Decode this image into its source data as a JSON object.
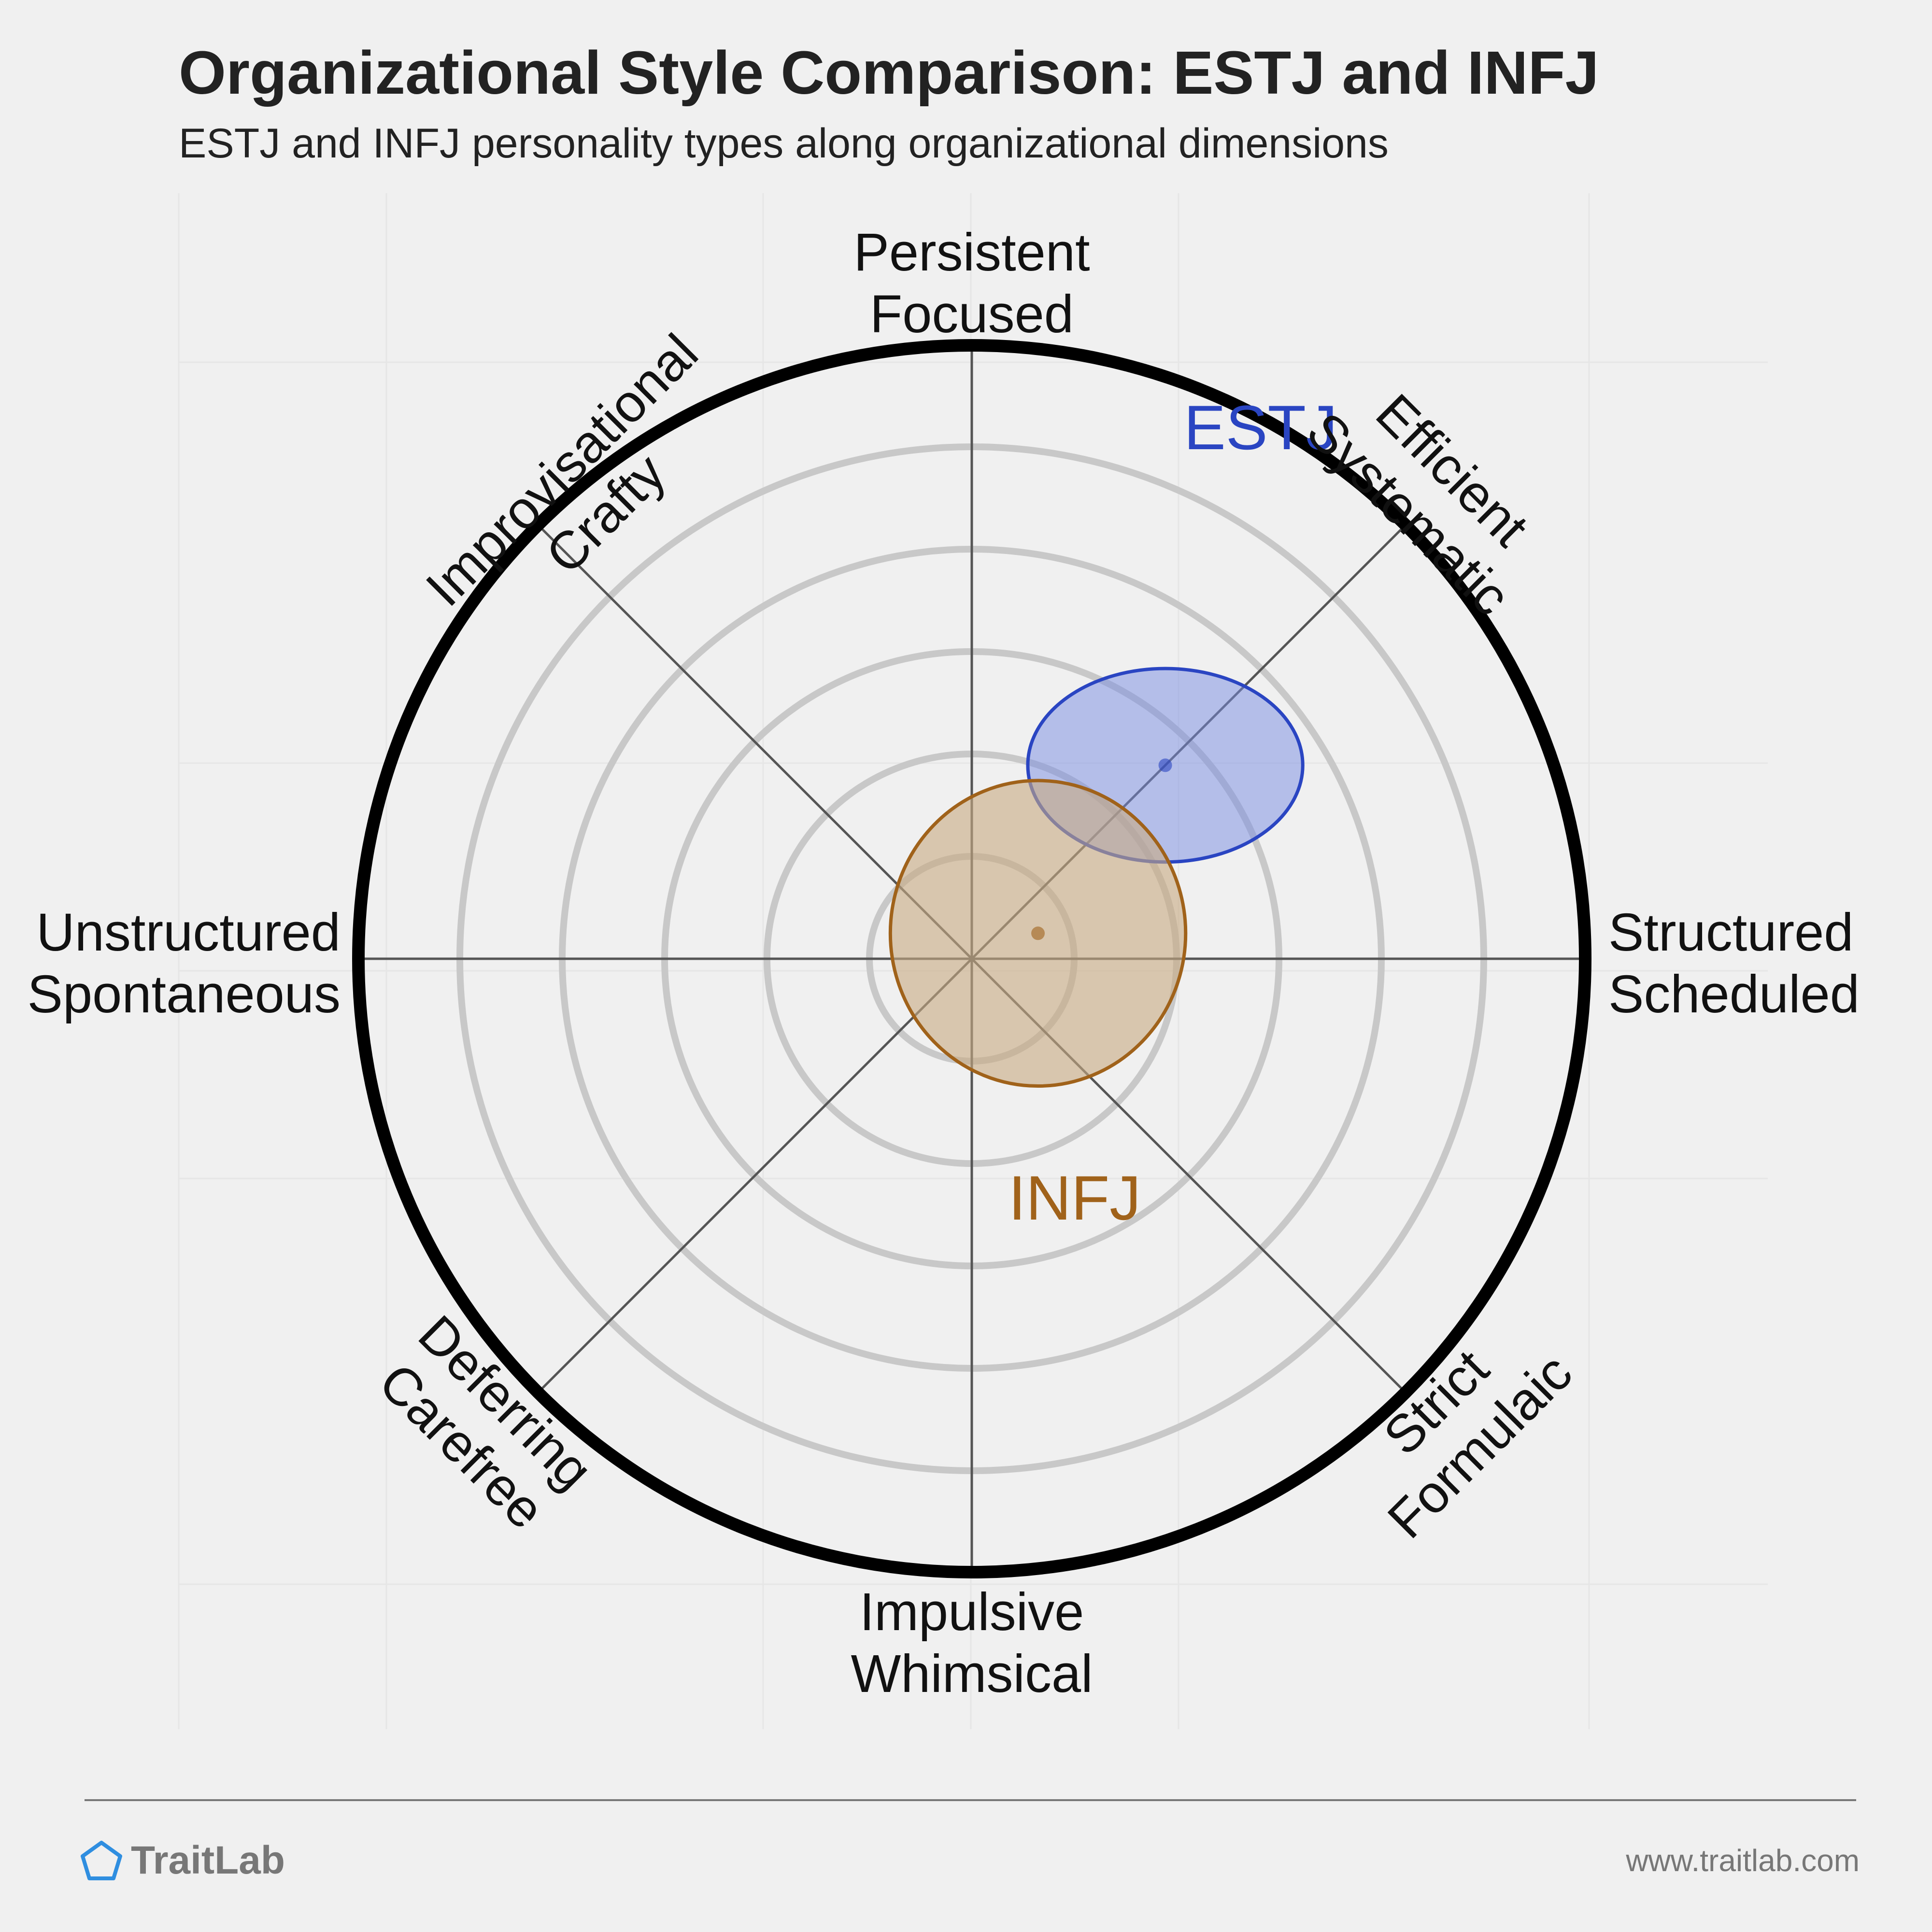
{
  "title": "Organizational Style Comparison: ESTJ and INFJ",
  "subtitle": "ESTJ and INFJ personality types along organizational dimensions",
  "brand": "TraitLab",
  "url": "www.traitlab.com",
  "chart_data": {
    "type": "scatter",
    "title": "Organizational Style Comparison: ESTJ and INFJ",
    "subtitle": "ESTJ and INFJ personality types along organizational dimensions",
    "grid": true,
    "axes": [
      {
        "name": "top",
        "label": [
          "Persistent",
          "Focused"
        ]
      },
      {
        "name": "top-right",
        "label": [
          "Efficient",
          "Systematic"
        ]
      },
      {
        "name": "right",
        "label": [
          "Structured",
          "Scheduled"
        ]
      },
      {
        "name": "bottom-right",
        "label": [
          "Strict",
          "Formulaic"
        ]
      },
      {
        "name": "bottom",
        "label": [
          "Impulsive",
          "Whimsical"
        ]
      },
      {
        "name": "bottom-left",
        "label": [
          "Deferring",
          "Carefree"
        ]
      },
      {
        "name": "left",
        "label": [
          "Unstructured",
          "Spontaneous"
        ]
      },
      {
        "name": "top-left",
        "label": [
          "Improvisational",
          "Crafty"
        ]
      }
    ],
    "xlim": [
      -6,
      6
    ],
    "ylim": [
      -6,
      6
    ],
    "series": [
      {
        "name": "ESTJ",
        "x": 1.9,
        "y": 1.9,
        "spread_x": 1.35,
        "spread_y": 0.95,
        "color": "#2a45c2",
        "fill": "rgba(120,140,225,0.5)"
      },
      {
        "name": "INFJ",
        "x": 0.65,
        "y": 0.25,
        "spread_x": 1.45,
        "spread_y": 1.5,
        "color": "#a0621a",
        "fill": "rgba(200,170,130,0.6)"
      }
    ]
  }
}
